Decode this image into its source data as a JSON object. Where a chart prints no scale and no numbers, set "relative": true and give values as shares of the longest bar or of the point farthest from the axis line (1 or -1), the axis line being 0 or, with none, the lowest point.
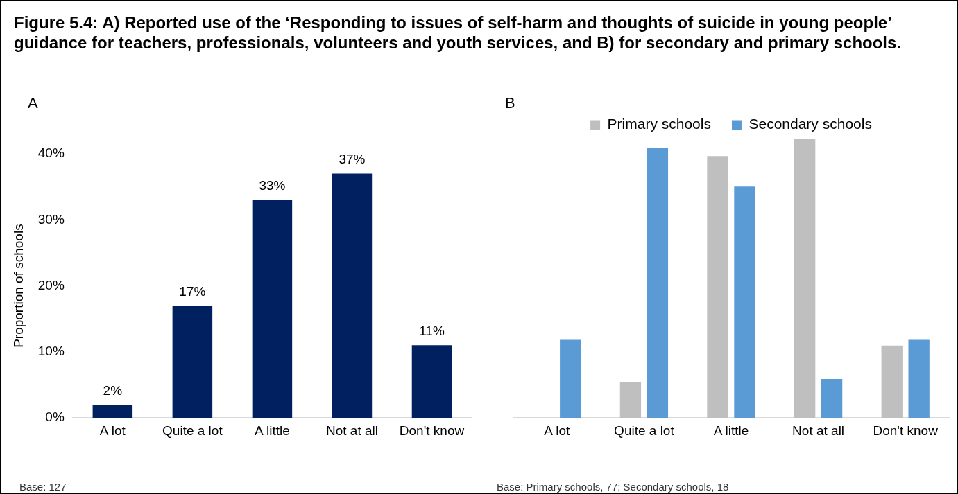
{
  "chart_data": [
    {
      "type": "bar",
      "title": "Figure 5.4: A) Reported use of the ‘Responding to issues of self-harm and thoughts of suicide in young people’ guidance for teachers, professionals, volunteers and youth services, and B) for secondary and primary schools.",
      "subtitle": "A",
      "ylabel": "Proportion of schools",
      "categories": [
        "A lot",
        "Quite a lot",
        "A little",
        "Not at all",
        "Don't know"
      ],
      "values": [
        2,
        17,
        33,
        37,
        11
      ],
      "value_labels": [
        "2%",
        "17%",
        "33%",
        "37%",
        "11%"
      ],
      "color": "#002060",
      "ylim": [
        0,
        40
      ],
      "yticks": [
        {
          "value": 0,
          "label": "0%"
        },
        {
          "value": 10,
          "label": "10%"
        },
        {
          "value": 20,
          "label": "20%"
        },
        {
          "value": 30,
          "label": "30%"
        },
        {
          "value": 40,
          "label": "40%"
        }
      ],
      "annotations": [
        "Base: 127"
      ]
    },
    {
      "type": "bar",
      "subtitle": "B",
      "relative": true,
      "legend": "top",
      "categories": [
        "A lot",
        "Quite a lot",
        "A little",
        "Not at all",
        "Don't know"
      ],
      "series": [
        {
          "name": "Primary schools",
          "color": "#bfbfbf",
          "values": [
            0,
            0.13,
            0.94,
            1,
            0.26
          ]
        },
        {
          "name": "Secondary schools",
          "color": "#5b9bd5",
          "values": [
            0.28,
            0.97,
            0.83,
            0.14,
            0.28
          ]
        }
      ],
      "annotations": [
        "Base: Primary schools, 77; Secondary schools, 18"
      ]
    }
  ]
}
